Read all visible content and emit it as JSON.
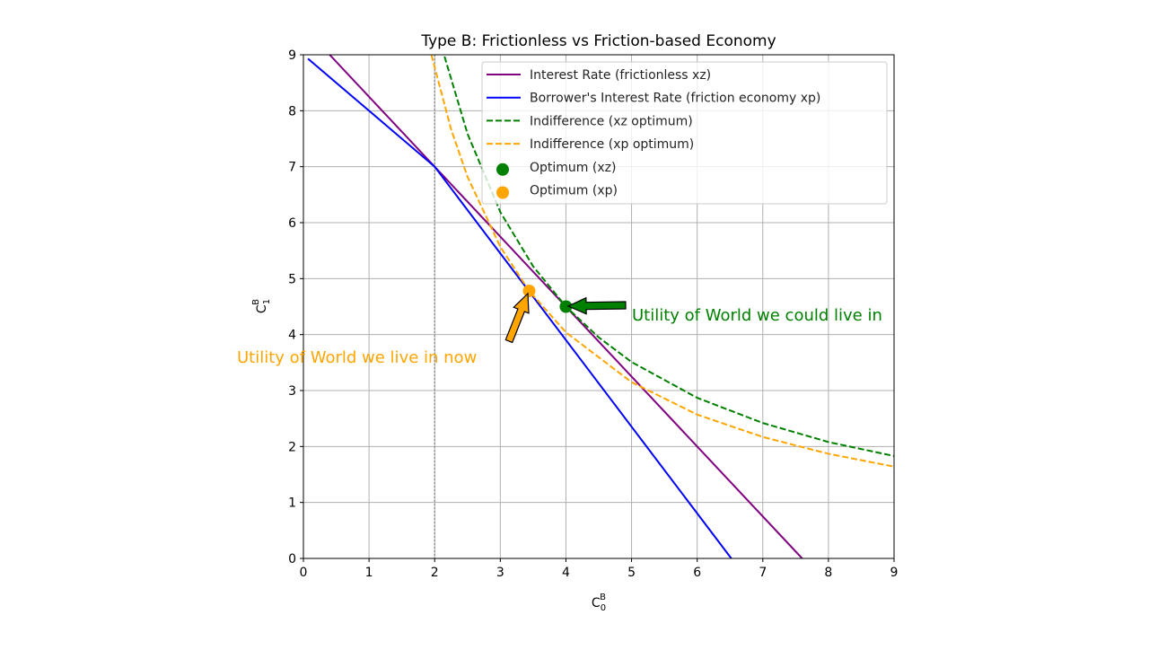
{
  "chart_data": {
    "type": "line",
    "title": "Type B: Frictionless vs Friction-based Economy",
    "xlabel": "C",
    "xlabel_sup": "B",
    "xlabel_sub": "0",
    "ylabel": "C",
    "ylabel_sup": "B",
    "ylabel_sub": "1",
    "xlim": [
      0,
      9
    ],
    "ylim": [
      0,
      9
    ],
    "xticks": [
      "0",
      "1",
      "2",
      "3",
      "4",
      "5",
      "6",
      "7",
      "8",
      "9"
    ],
    "yticks": [
      "0",
      "1",
      "2",
      "3",
      "4",
      "5",
      "6",
      "7",
      "8",
      "9"
    ],
    "grid": true,
    "legend_position": "top-right",
    "vline_x": 2,
    "series": [
      {
        "name": "Interest Rate (frictionless xz)",
        "color": "#800080",
        "style": "solid",
        "x": [
          0.4,
          7.6
        ],
        "y": [
          9.0,
          0.0
        ]
      },
      {
        "name": "Borrower's Interest Rate (friction economy xp)",
        "color": "#0000ff",
        "style": "solid",
        "x": [
          0.07,
          2,
          6.52
        ],
        "y": [
          8.93,
          7,
          0.0
        ]
      },
      {
        "name": "Indifference (xz optimum)",
        "color": "#008000",
        "style": "dashed",
        "x": [
          2.15,
          2.5,
          3,
          3.5,
          4,
          4.5,
          5,
          6,
          7,
          8,
          9
        ],
        "y": [
          8.97,
          7.59,
          6.19,
          5.22,
          4.5,
          3.95,
          3.51,
          2.87,
          2.42,
          2.08,
          1.83
        ]
      },
      {
        "name": "Indifference (xp optimum)",
        "color": "#ffa500",
        "style": "dashed",
        "x": [
          1.95,
          2.25,
          2.5,
          3,
          3.44,
          4,
          5,
          6,
          7,
          8,
          9
        ],
        "y": [
          9.0,
          7.67,
          6.82,
          5.57,
          4.78,
          4.04,
          3.15,
          2.57,
          2.17,
          1.87,
          1.64
        ]
      }
    ],
    "points": [
      {
        "name": "Optimum (xz)",
        "color": "#008000",
        "x": 4.0,
        "y": 4.5
      },
      {
        "name": "Optimum (xp)",
        "color": "#ffa500",
        "x": 3.44,
        "y": 4.78
      }
    ],
    "annotations": [
      {
        "text": "Utility of World we could live in",
        "color": "#008000",
        "target": [
          4.0,
          4.5
        ],
        "text_at": [
          5.0,
          4.3
        ]
      },
      {
        "text": "Utility of World we live in now",
        "color": "#ffa500",
        "target": [
          3.44,
          4.78
        ],
        "text_at": [
          1.55,
          3.6
        ]
      }
    ]
  }
}
